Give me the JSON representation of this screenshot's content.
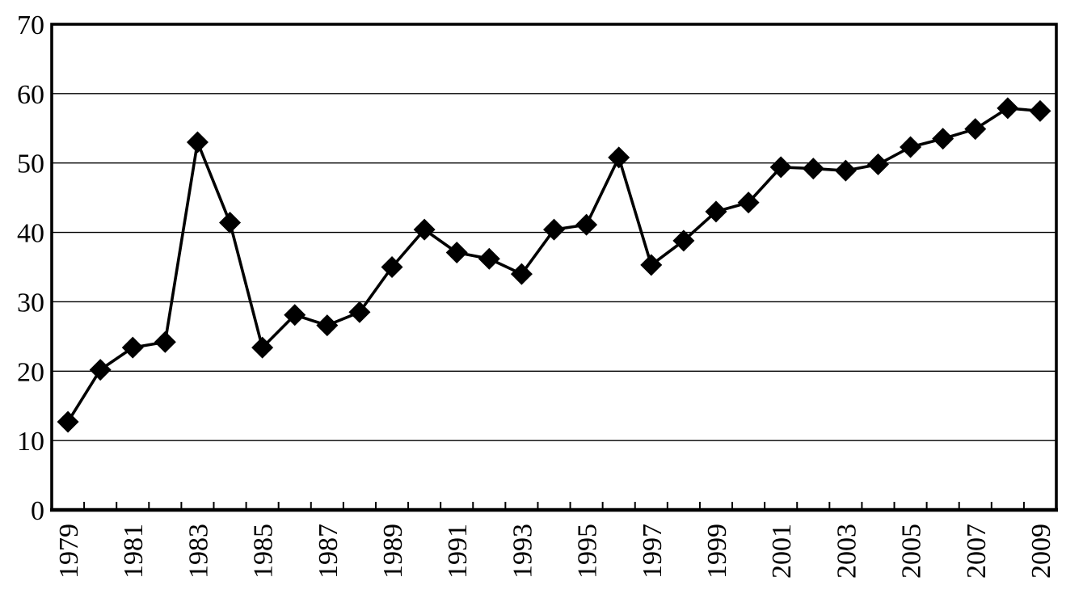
{
  "chart_data": {
    "type": "line",
    "title": "",
    "xlabel": "",
    "ylabel": "",
    "x": [
      1979,
      1980,
      1981,
      1982,
      1983,
      1984,
      1985,
      1986,
      1987,
      1988,
      1989,
      1990,
      1991,
      1992,
      1993,
      1994,
      1995,
      1996,
      1997,
      1998,
      1999,
      2000,
      2001,
      2002,
      2003,
      2004,
      2005,
      2006,
      2007,
      2008,
      2009
    ],
    "values": [
      12.7,
      20.2,
      23.4,
      24.2,
      53.0,
      41.4,
      23.4,
      28.1,
      26.6,
      28.5,
      35.0,
      40.4,
      37.1,
      36.2,
      34.0,
      40.4,
      41.1,
      50.8,
      35.3,
      38.8,
      43.0,
      44.3,
      49.4,
      49.2,
      48.9,
      49.8,
      52.3,
      53.5,
      54.9,
      57.9,
      57.5
    ],
    "ylim": [
      0,
      70
    ],
    "ytick_step": 10,
    "y_tick_labels": [
      "0",
      "10",
      "20",
      "30",
      "40",
      "50",
      "60",
      "70"
    ],
    "x_tick_labels": [
      "1979",
      "1981",
      "1983",
      "1985",
      "1987",
      "1989",
      "1991",
      "1993",
      "1995",
      "1997",
      "1999",
      "2001",
      "2003",
      "2005",
      "2007",
      "2009"
    ],
    "x_label_every": 2,
    "grid": "horizontal",
    "legend": "none",
    "marker": "diamond",
    "line_color": "#000000",
    "marker_color": "#000000",
    "grid_color": "#000000",
    "frame_color": "#000000",
    "background": "#ffffff"
  }
}
